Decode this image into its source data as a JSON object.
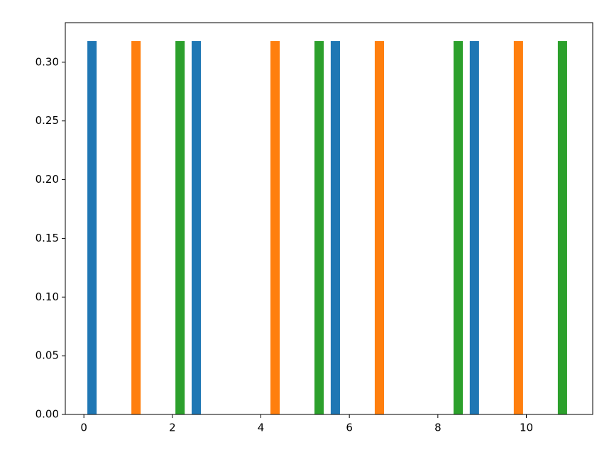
{
  "chart_data": {
    "type": "histogram",
    "bins": [
      0,
      0.7857,
      1.5714,
      2.3571,
      3.1429,
      3.9286,
      4.7143,
      5.5,
      6.2857,
      7.0714,
      7.8571,
      8.6429,
      9.4286,
      10.2143,
      11
    ],
    "series": [
      {
        "color": "#1f77b4",
        "values": [
          0.318,
          0,
          0,
          0.318,
          0,
          0,
          0,
          0.318,
          0,
          0,
          0,
          0.318,
          0,
          0
        ]
      },
      {
        "color": "#ff7f0e",
        "values": [
          0,
          0.318,
          0,
          0,
          0,
          0.318,
          0,
          0,
          0.318,
          0,
          0,
          0,
          0.318,
          0
        ]
      },
      {
        "color": "#2ca02c",
        "values": [
          0,
          0,
          0.318,
          0,
          0,
          0,
          0.318,
          0,
          0,
          0,
          0.318,
          0,
          0,
          0.318
        ]
      }
    ],
    "xlim": [
      -0.42,
      11.5
    ],
    "ylim": [
      0,
      0.3337
    ],
    "xticks": [
      0,
      2,
      4,
      6,
      8,
      10
    ],
    "yticks": [
      {
        "value": 0,
        "label": "0.00"
      },
      {
        "value": 0.05,
        "label": "0.05"
      },
      {
        "value": 0.1,
        "label": "0.10"
      },
      {
        "value": 0.15,
        "label": "0.15"
      },
      {
        "value": 0.2,
        "label": "0.20"
      },
      {
        "value": 0.25,
        "label": "0.25"
      },
      {
        "value": 0.3,
        "label": "0.30"
      }
    ]
  }
}
